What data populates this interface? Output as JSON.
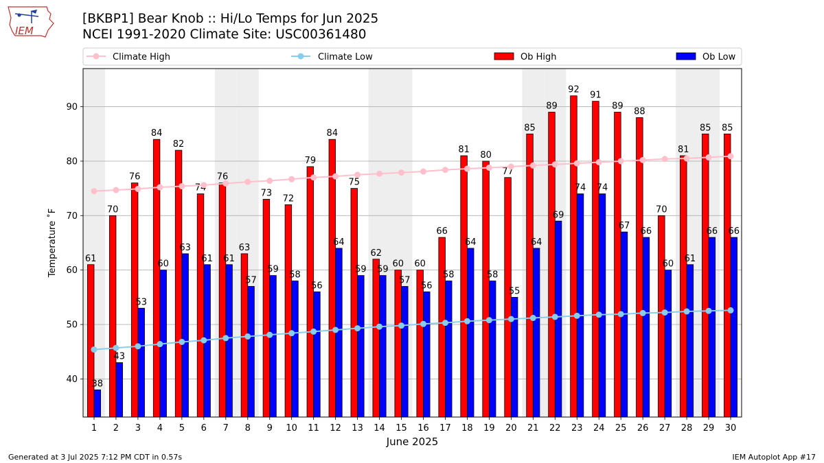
{
  "logo": {
    "text": "IEM"
  },
  "header": {
    "title": "[BKBP1] Bear Knob :: Hi/Lo Temps for Jun 2025",
    "subtitle": "NCEI 1991-2020 Climate Site: USC00361480"
  },
  "footer": {
    "left": "Generated at 3 Jul 2025 7:12 PM CDT in 0.57s",
    "right": "IEM Autoplot App #17"
  },
  "colors": {
    "ob_high": "#ff0000",
    "ob_low": "#0000ff",
    "climate_high": "#ffc0cb",
    "climate_low": "#87ceeb",
    "weekend_shade": "#eeeeee",
    "grid": "#b0b0b0"
  },
  "chart_data": {
    "type": "bar",
    "xlabel": "June 2025",
    "ylabel": "Temperature ˚F",
    "ylim": [
      33,
      97
    ],
    "yticks": [
      40,
      50,
      60,
      70,
      80,
      90
    ],
    "grid": "horizontal",
    "legend_position": "top",
    "categories": [
      "1",
      "2",
      "3",
      "4",
      "5",
      "6",
      "7",
      "8",
      "9",
      "10",
      "11",
      "12",
      "13",
      "14",
      "15",
      "16",
      "17",
      "18",
      "19",
      "20",
      "21",
      "22",
      "23",
      "24",
      "25",
      "26",
      "27",
      "28",
      "29",
      "30"
    ],
    "shaded_days": [
      1,
      7,
      8,
      14,
      15,
      21,
      22,
      28,
      29
    ],
    "series": [
      {
        "name": "Ob High",
        "kind": "bar",
        "values": [
          61,
          70,
          76,
          84,
          82,
          74,
          76,
          63,
          73,
          72,
          79,
          84,
          75,
          62,
          60,
          60,
          66,
          81,
          80,
          77,
          85,
          89,
          92,
          91,
          89,
          88,
          70,
          81,
          85,
          85
        ]
      },
      {
        "name": "Ob Low",
        "kind": "bar",
        "values": [
          38,
          43,
          53,
          60,
          63,
          61,
          61,
          57,
          59,
          58,
          56,
          64,
          59,
          59,
          57,
          56,
          58,
          64,
          58,
          55,
          64,
          69,
          74,
          74,
          67,
          66,
          60,
          61,
          66,
          66
        ]
      },
      {
        "name": "Climate High",
        "kind": "line",
        "values": [
          74.5,
          74.7,
          74.9,
          75.2,
          75.4,
          75.6,
          75.9,
          76.2,
          76.4,
          76.7,
          77.0,
          77.2,
          77.5,
          77.7,
          77.9,
          78.1,
          78.4,
          78.6,
          78.8,
          79.0,
          79.2,
          79.4,
          79.6,
          79.8,
          80.0,
          80.2,
          80.4,
          80.5,
          80.7,
          80.9
        ]
      },
      {
        "name": "Climate Low",
        "kind": "line",
        "values": [
          45.4,
          45.7,
          46.0,
          46.4,
          46.8,
          47.1,
          47.5,
          47.8,
          48.1,
          48.4,
          48.7,
          49.0,
          49.3,
          49.6,
          49.8,
          50.1,
          50.3,
          50.6,
          50.8,
          51.0,
          51.2,
          51.4,
          51.6,
          51.8,
          51.9,
          52.1,
          52.2,
          52.4,
          52.5,
          52.6
        ]
      }
    ]
  }
}
